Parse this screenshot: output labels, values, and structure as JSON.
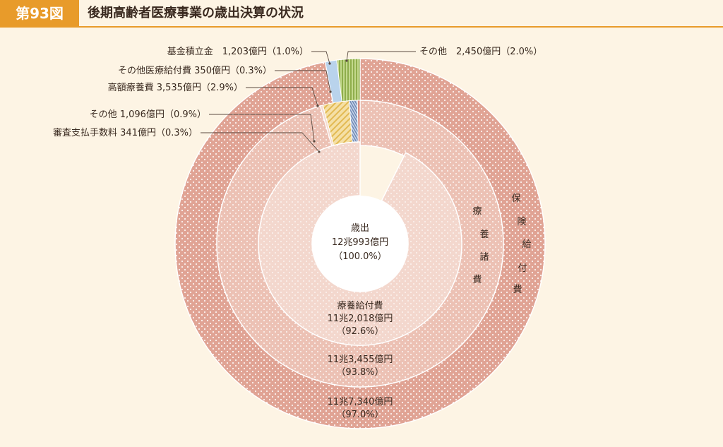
{
  "figure": {
    "number": "第93図",
    "title": "後期高齢者医療事業の歳出決算の状況"
  },
  "chart_data": {
    "type": "pie",
    "center": {
      "line1": "歳出",
      "line2": "12兆993億円",
      "line3": "（100.0%）"
    },
    "rings": [
      {
        "ring": "outer",
        "name": "保険給付費",
        "slices": [
          {
            "label": "保険給付費",
            "value_text": "11兆7,340億円",
            "pct_text": "（97.0%）",
            "value": 117340,
            "pct": 97.0,
            "color": "#e0a394"
          },
          {
            "label": "基金積立金",
            "value_text": "1,203億円",
            "pct_text": "（1.0%）",
            "value": 1203,
            "pct": 1.0,
            "color": "#b9d3ec"
          },
          {
            "label": "その他",
            "value_text": "2,450億円",
            "pct_text": "（2.0%）",
            "value": 2450,
            "pct": 2.0,
            "color": "#a9c46a"
          }
        ]
      },
      {
        "ring": "middle",
        "name": "療養諸費",
        "slices": [
          {
            "label": "療養諸費",
            "value_text": "11兆3,455億円",
            "pct_text": "（93.8%）",
            "value": 113455,
            "pct": 93.8,
            "color": "#ecc1b4"
          },
          {
            "label": "高額療養費",
            "value_text": "3,535億円",
            "pct_text": "（2.9%）",
            "value": 3535,
            "pct": 2.9,
            "color": "#f0d289"
          },
          {
            "label": "その他",
            "value_text": "1,096億円",
            "pct_text": "（0.9%）",
            "value": 1096,
            "pct": 0.9,
            "color": "#8da3c4"
          },
          {
            "label": "審査支払手数料",
            "value_text": "341億円",
            "pct_text": "（0.3%）",
            "value": 341,
            "pct": 0.3,
            "color": "#f4dcd3"
          },
          {
            "label": "その他医療給付費",
            "value_text": "350億円",
            "pct_text": "（0.3%）",
            "value": 350,
            "pct": 0.3,
            "color": "#d98b7e"
          }
        ]
      },
      {
        "ring": "inner",
        "name": "療養給付費",
        "slices": [
          {
            "label": "療養給付費",
            "value_text": "11兆2,018億円",
            "pct_text": "（92.6%）",
            "value": 112018,
            "pct": 92.6,
            "color": "#f3d7cd"
          }
        ]
      }
    ],
    "ring_titles": {
      "outer": [
        "保",
        "険",
        "給",
        "付",
        "費"
      ],
      "middle": [
        "療",
        "養",
        "諸",
        "費"
      ]
    },
    "callouts": [
      {
        "text": "基金積立金　1,203億円（1.0%）"
      },
      {
        "text": "その他　2,450億円（2.0%）"
      },
      {
        "text": "その他医療給付費  350億円（0.3%）"
      },
      {
        "text": "高額療養費  3,535億円（2.9%）"
      },
      {
        "text": "その他  1,096億円（0.9%）"
      },
      {
        "text": "審査支払手数料  341億円（0.3%）"
      }
    ]
  }
}
